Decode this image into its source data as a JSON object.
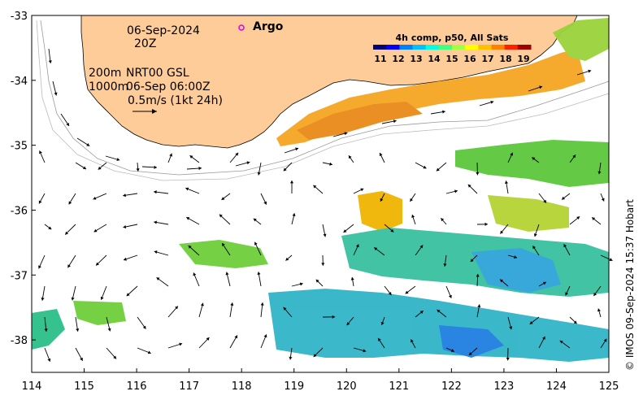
{
  "map": {
    "region": "South-west Australia / Great Australian Bight",
    "lon_range": [
      114,
      125
    ],
    "lat_range": [
      -38.5,
      -33
    ],
    "x_ticks": [
      "114",
      "115",
      "116",
      "117",
      "118",
      "119",
      "120",
      "121",
      "122",
      "123",
      "124",
      "125"
    ],
    "y_ticks": [
      "-33",
      "-34",
      "-35",
      "-36",
      "-37",
      "-38"
    ],
    "land_color": "#fdcc99",
    "ocean_color": "#ffffff"
  },
  "labels": {
    "date": "06-Sep-2024",
    "time": "20Z",
    "depth_200": "200m",
    "depth_1000": "1000m",
    "product": "NRT00 GSL",
    "alt_date": "06-Sep 06:00Z",
    "scale": "0.5m/s (1kt 24h)",
    "argo": "Argo",
    "colorbar_title": "4h comp, p50, All Sats",
    "credit": "© IMOS 09-Sep-2024 15:37 Hobart"
  },
  "colorbar": {
    "ticks": [
      "11",
      "12",
      "13",
      "14",
      "15",
      "16",
      "17",
      "18",
      "19"
    ],
    "colors": [
      "#00007f",
      "#0000ff",
      "#0080ff",
      "#00c0ff",
      "#00ffe0",
      "#40ff80",
      "#a0ff40",
      "#ffff00",
      "#ffc000",
      "#ff8000",
      "#ff2000",
      "#a00000"
    ]
  },
  "argo_color": "#e000e0"
}
